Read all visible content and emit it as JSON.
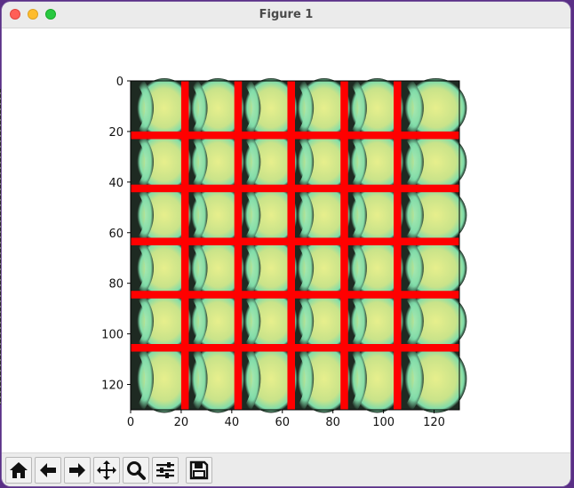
{
  "window": {
    "title": "Figure 1"
  },
  "toolbar": {
    "buttons": [
      {
        "name": "home",
        "icon": "home-icon"
      },
      {
        "name": "back",
        "icon": "arrow-left-icon"
      },
      {
        "name": "forward",
        "icon": "arrow-right-icon"
      },
      {
        "name": "pan",
        "icon": "move-icon"
      },
      {
        "name": "zoom",
        "icon": "zoom-icon"
      },
      {
        "name": "configure-subplots",
        "icon": "sliders-icon"
      },
      {
        "name": "save",
        "icon": "save-icon"
      }
    ]
  },
  "colors": {
    "grid_lines": "#ff0000",
    "cell_yellow": "#e7ef8c",
    "cell_green": "#7fdcaa",
    "cell_dark": "#1e2a22"
  },
  "chart_data": {
    "type": "heatmap",
    "description_of_content": "image with red grid overlay",
    "xlim": [
      0,
      130
    ],
    "ylim": [
      130,
      0
    ],
    "x_ticks": [
      0,
      20,
      40,
      60,
      80,
      100,
      120
    ],
    "y_ticks": [
      0,
      20,
      40,
      60,
      80,
      100,
      120
    ],
    "grid_line_positions": [
      21.5,
      42.5,
      63.5,
      84.5,
      105.5
    ],
    "grid_line_width": 3
  }
}
